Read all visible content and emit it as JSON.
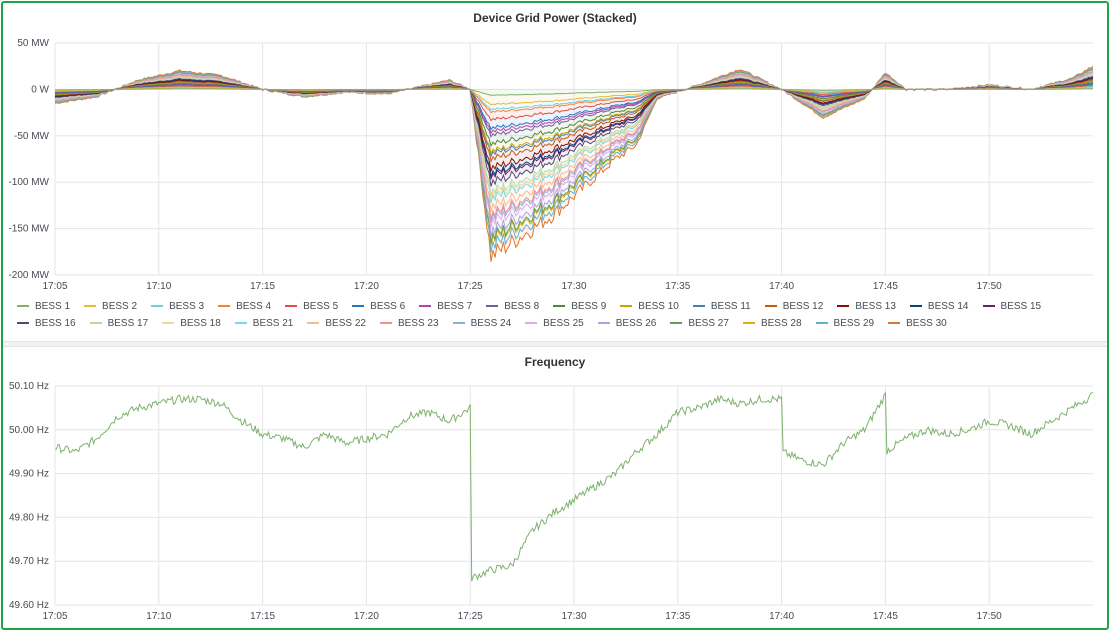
{
  "chart_data": [
    {
      "type": "area",
      "title": "Device Grid Power (Stacked)",
      "stacked": true,
      "xlabel": "",
      "ylabel": "",
      "x_ticks": [
        "17:05",
        "17:10",
        "17:15",
        "17:20",
        "17:25",
        "17:30",
        "17:35",
        "17:40",
        "17:45",
        "17:50"
      ],
      "y_ticks": [
        "50 MW",
        "0 W",
        "-50 MW",
        "-100 MW",
        "-150 MW",
        "-200 MW"
      ],
      "y_tick_values": [
        50,
        0,
        -50,
        -100,
        -150,
        -200
      ],
      "ylim": [
        -200,
        50
      ],
      "xlim": [
        "17:05",
        "17:55"
      ],
      "grid": true,
      "legend_position": "bottom",
      "x": [
        "17:05",
        "17:07",
        "17:09",
        "17:11",
        "17:13",
        "17:15",
        "17:17",
        "17:19",
        "17:21",
        "17:23",
        "17:24",
        "17:25",
        "17:26",
        "17:27",
        "17:28",
        "17:29",
        "17:30",
        "17:31",
        "17:32",
        "17:33",
        "17:34",
        "17:36",
        "17:38",
        "17:40",
        "17:42",
        "17:44",
        "17:45",
        "17:46",
        "17:48",
        "17:50",
        "17:52",
        "17:54",
        "17:55"
      ],
      "total_values": [
        -15,
        -8,
        10,
        20,
        15,
        0,
        -8,
        -3,
        -5,
        5,
        10,
        0,
        -180,
        -165,
        -150,
        -135,
        -115,
        -95,
        -75,
        -60,
        -10,
        5,
        22,
        0,
        -30,
        -10,
        18,
        0,
        0,
        5,
        0,
        12,
        25
      ],
      "series": [
        {
          "name": "BESS 1",
          "color": "#7eb26d"
        },
        {
          "name": "BESS 2",
          "color": "#eab839"
        },
        {
          "name": "BESS 3",
          "color": "#6ed0e0"
        },
        {
          "name": "BESS 4",
          "color": "#ef843c"
        },
        {
          "name": "BESS 5",
          "color": "#e24d42"
        },
        {
          "name": "BESS 6",
          "color": "#1f78c1"
        },
        {
          "name": "BESS 7",
          "color": "#ba43a9"
        },
        {
          "name": "BESS 8",
          "color": "#705da0"
        },
        {
          "name": "BESS 9",
          "color": "#508642"
        },
        {
          "name": "BESS 10",
          "color": "#cca300"
        },
        {
          "name": "BESS 11",
          "color": "#447ebc"
        },
        {
          "name": "BESS 12",
          "color": "#c15c17"
        },
        {
          "name": "BESS 13",
          "color": "#890f02"
        },
        {
          "name": "BESS 14",
          "color": "#0a437c"
        },
        {
          "name": "BESS 15",
          "color": "#6d1f62"
        },
        {
          "name": "BESS 16",
          "color": "#584477"
        },
        {
          "name": "BESS 17",
          "color": "#b7dbab"
        },
        {
          "name": "BESS 18",
          "color": "#f4d598"
        },
        {
          "name": "BESS 21",
          "color": "#70dbed"
        },
        {
          "name": "BESS 22",
          "color": "#f9ba8f"
        },
        {
          "name": "BESS 23",
          "color": "#f29191"
        },
        {
          "name": "BESS 24",
          "color": "#82b5d8"
        },
        {
          "name": "BESS 25",
          "color": "#e5a8e2"
        },
        {
          "name": "BESS 26",
          "color": "#aea2e0"
        },
        {
          "name": "BESS 27",
          "color": "#629e51"
        },
        {
          "name": "BESS 28",
          "color": "#e5ac0e"
        },
        {
          "name": "BESS 29",
          "color": "#64b0c8"
        },
        {
          "name": "BESS 30",
          "color": "#e0752d"
        }
      ]
    },
    {
      "type": "line",
      "title": "Frequency",
      "xlabel": "",
      "ylabel": "",
      "x_ticks": [
        "17:05",
        "17:10",
        "17:15",
        "17:20",
        "17:25",
        "17:30",
        "17:35",
        "17:40",
        "17:45",
        "17:50"
      ],
      "y_ticks": [
        "50.10 Hz",
        "50.00 Hz",
        "49.90 Hz",
        "49.80 Hz",
        "49.70 Hz",
        "49.60 Hz"
      ],
      "y_tick_values": [
        50.1,
        50.0,
        49.9,
        49.8,
        49.7,
        49.6
      ],
      "ylim": [
        49.6,
        50.1
      ],
      "xlim": [
        "17:05",
        "17:55"
      ],
      "grid": true,
      "series": [
        {
          "name": "",
          "color": "#7eb26d",
          "x": [
            "17:05",
            "17:06",
            "17:07",
            "17:08",
            "17:09",
            "17:10",
            "17:11",
            "17:12",
            "17:13",
            "17:14",
            "17:15",
            "17:16",
            "17:17",
            "17:18",
            "17:19",
            "17:20",
            "17:21",
            "17:22",
            "17:23",
            "17:24",
            "17:25",
            "17:25",
            "17:26",
            "17:27",
            "17:28",
            "17:29",
            "17:30",
            "17:31",
            "17:32",
            "17:33",
            "17:34",
            "17:35",
            "17:36",
            "17:37",
            "17:38",
            "17:39",
            "17:40",
            "17:40",
            "17:41",
            "17:42",
            "17:43",
            "17:44",
            "17:45",
            "17:45",
            "17:46",
            "17:47",
            "17:48",
            "17:49",
            "17:50",
            "17:51",
            "17:52",
            "17:53",
            "17:54",
            "17:55"
          ],
          "values": [
            49.96,
            49.95,
            49.98,
            50.03,
            50.05,
            50.06,
            50.07,
            50.07,
            50.06,
            50.02,
            49.99,
            49.98,
            49.96,
            49.99,
            49.97,
            49.98,
            49.99,
            50.03,
            50.04,
            50.02,
            50.05,
            49.66,
            49.68,
            49.69,
            49.77,
            49.81,
            49.84,
            49.87,
            49.9,
            49.95,
            49.99,
            50.04,
            50.05,
            50.07,
            50.06,
            50.07,
            50.07,
            49.95,
            49.93,
            49.92,
            49.97,
            50.0,
            50.08,
            49.95,
            49.98,
            50.0,
            49.99,
            50.0,
            50.02,
            50.01,
            49.99,
            50.02,
            50.05,
            50.08
          ]
        }
      ]
    }
  ]
}
